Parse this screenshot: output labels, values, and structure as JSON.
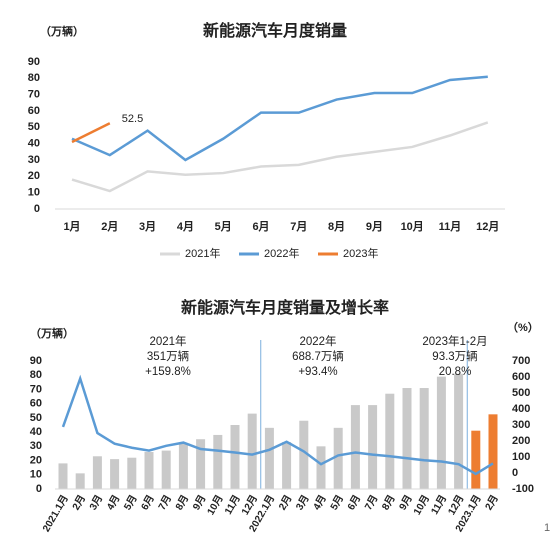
{
  "chart_data": [
    {
      "type": "line",
      "title": "新能源汽车月度销量",
      "y_label": "（万辆）",
      "categories": [
        "1月",
        "2月",
        "3月",
        "4月",
        "5月",
        "6月",
        "7月",
        "8月",
        "9月",
        "10月",
        "11月",
        "12月"
      ],
      "series": [
        {
          "name": "2021年",
          "color": "#d9d9d9",
          "values": [
            18,
            11,
            23,
            21,
            22,
            26,
            27,
            32,
            35,
            38,
            45,
            53
          ]
        },
        {
          "name": "2022年",
          "color": "#5b9bd5",
          "values": [
            43,
            33,
            48,
            30,
            43,
            59,
            59,
            67,
            71,
            71,
            79,
            81
          ]
        },
        {
          "name": "2023年",
          "color": "#ed7d31",
          "values": [
            41,
            52.5,
            null,
            null,
            null,
            null,
            null,
            null,
            null,
            null,
            null,
            null
          ]
        }
      ],
      "ylim": [
        0,
        90
      ],
      "yticks": [
        0,
        10,
        20,
        30,
        40,
        50,
        60,
        70,
        80,
        90
      ],
      "grid": false,
      "legend": "bottom"
    },
    {
      "type": "combo",
      "title": "新能源汽车月度销量及增长率",
      "y_label": "（万辆）",
      "y2_label": "（%）",
      "categories": [
        "2021.1月",
        "2月",
        "3月",
        "4月",
        "5月",
        "6月",
        "7月",
        "8月",
        "9月",
        "10月",
        "11月",
        "12月",
        "2022.1月",
        "2月",
        "3月",
        "4月",
        "5月",
        "6月",
        "7月",
        "8月",
        "9月",
        "10月",
        "11月",
        "12月",
        "2023.1月",
        "2月"
      ],
      "series": [
        {
          "type": "bar",
          "colors": [
            "#c9c9c9",
            "#c9c9c9",
            "#c9c9c9",
            "#c9c9c9",
            "#c9c9c9",
            "#c9c9c9",
            "#c9c9c9",
            "#c9c9c9",
            "#c9c9c9",
            "#c9c9c9",
            "#c9c9c9",
            "#c9c9c9",
            "#c9c9c9",
            "#c9c9c9",
            "#c9c9c9",
            "#c9c9c9",
            "#c9c9c9",
            "#c9c9c9",
            "#c9c9c9",
            "#c9c9c9",
            "#c9c9c9",
            "#c9c9c9",
            "#c9c9c9",
            "#c9c9c9",
            "#ed7d31",
            "#ed7d31"
          ],
          "values": [
            18,
            11,
            23,
            21,
            22,
            26,
            27,
            32,
            35,
            38,
            45,
            53,
            43,
            33,
            48,
            30,
            43,
            59,
            59,
            67,
            71,
            71,
            79,
            81,
            41,
            52.5
          ]
        },
        {
          "type": "line",
          "axis": "y2",
          "color": "#5b9bd5",
          "values": [
            288,
            590,
            250,
            183,
            158,
            140,
            170,
            190,
            150,
            140,
            128,
            115,
            145,
            195,
            135,
            55,
            110,
            128,
            115,
            105,
            92,
            80,
            72,
            55,
            -6,
            60
          ]
        }
      ],
      "ylim": [
        0,
        90
      ],
      "yticks": [
        0,
        10,
        20,
        30,
        40,
        50,
        60,
        70,
        80,
        90
      ],
      "y2lim": [
        -100,
        700
      ],
      "y2ticks": [
        -100,
        0,
        100,
        200,
        300,
        400,
        500,
        600,
        700
      ],
      "annotations": [
        [
          "2021年",
          "351万辆",
          "+159.8%"
        ],
        [
          "2022年",
          "688.7万辆",
          "+93.4%"
        ],
        [
          "2023年1-2月",
          "93.3万辆",
          "20.8%"
        ]
      ]
    }
  ],
  "page_number": "1"
}
